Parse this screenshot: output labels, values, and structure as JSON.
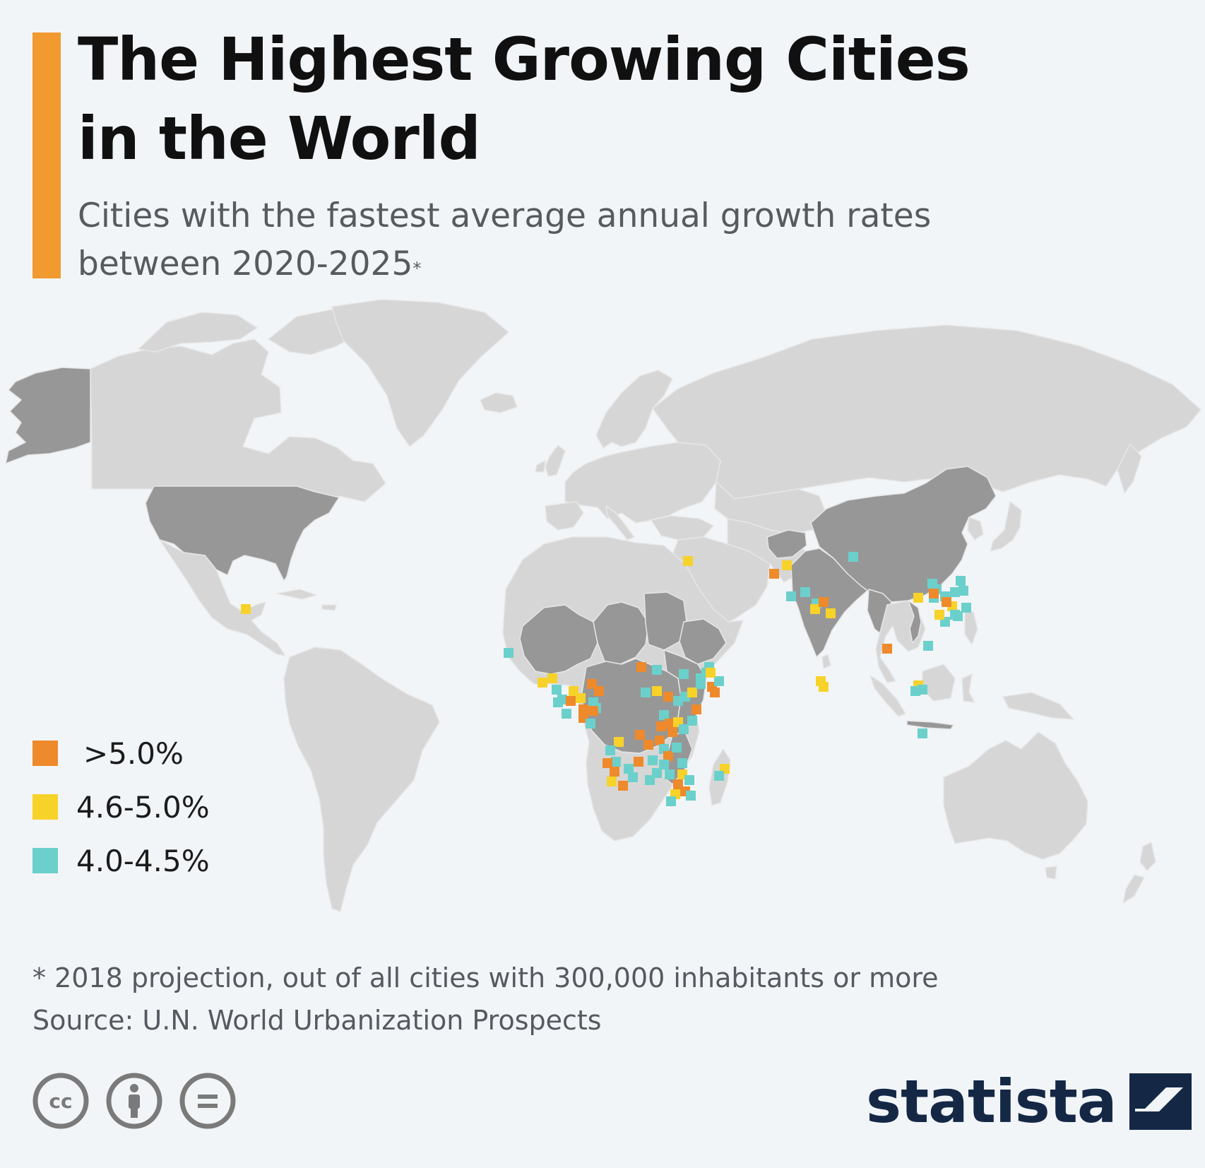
{
  "header": {
    "title_line1": "The Highest Growing Cities",
    "title_line2": "in the World",
    "subtitle_line1": "Cities with the fastest average annual growth rates",
    "subtitle_line2": "between 2020-2025",
    "subtitle_marker": "*"
  },
  "legend": {
    "items": [
      {
        "label": ">5.0%",
        "color": "#ee8a2c"
      },
      {
        "label": "4.6-5.0%",
        "color": "#f7d229"
      },
      {
        "label": "4.0-4.5%",
        "color": "#6bd0cb"
      }
    ]
  },
  "map": {
    "land_color": "#d6d6d6",
    "highlight_color": "#979797",
    "background_color": "#f2f5f8"
  },
  "footer": {
    "note": "* 2018 projection, out of all cities with 300,000 inhabitants or more",
    "source": "Source: U.N. World Urbanization Prospects",
    "license_icons": [
      "creative-commons-icon",
      "attribution-icon",
      "no-derivatives-icon"
    ],
    "brand": "statista",
    "brand_color": "#142846"
  },
  "chart_data": {
    "type": "map",
    "categories": [
      ">5.0%",
      "4.6-5.0%",
      "4.0-4.5%"
    ],
    "series": [
      {
        "name": ">5.0%",
        "count": 36
      },
      {
        "name": "4.6-5.0%",
        "count": 20
      },
      {
        "name": "4.0-4.5%",
        "count": 48
      }
    ]
  }
}
